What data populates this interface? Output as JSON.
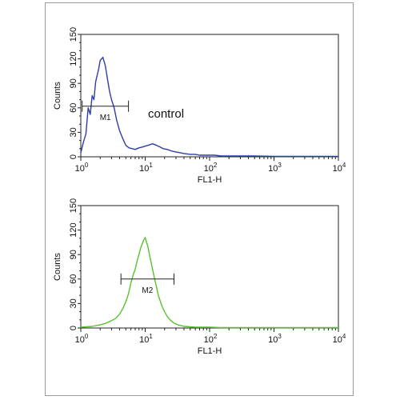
{
  "chart_data": [
    {
      "type": "line",
      "title": "",
      "xlabel": "FL1-H",
      "ylabel": "Counts",
      "xscale": "log",
      "xlim": [
        1,
        10000
      ],
      "ylim": [
        0,
        150
      ],
      "x_ticks": [
        {
          "base": "10",
          "exp": "0"
        },
        {
          "base": "10",
          "exp": "1"
        },
        {
          "base": "10",
          "exp": "2"
        },
        {
          "base": "10",
          "exp": "3"
        },
        {
          "base": "10",
          "exp": "4"
        }
      ],
      "y_ticks": [
        "0",
        "30",
        "60",
        "90",
        "120",
        "150"
      ],
      "annotation": "control",
      "gate": {
        "label": "M1",
        "x_start": 1.05,
        "x_end": 5.5,
        "y": 62
      },
      "series": [
        {
          "color": "#2b3fa8",
          "x": [
            1.0,
            1.1,
            1.2,
            1.3,
            1.4,
            1.5,
            1.6,
            1.7,
            1.8,
            1.9,
            2.0,
            2.2,
            2.4,
            2.6,
            2.8,
            3.0,
            3.3,
            3.6,
            4.0,
            4.5,
            5.0,
            5.6,
            6.3,
            7.0,
            8.0,
            9.0,
            10,
            11,
            12,
            13,
            14,
            15,
            17,
            19,
            22,
            26,
            30,
            35,
            40,
            50,
            60,
            70,
            80,
            100,
            120,
            150,
            200,
            300,
            500,
            1000,
            2000,
            5000,
            10000
          ],
          "y": [
            5,
            18,
            28,
            60,
            52,
            75,
            70,
            92,
            100,
            108,
            118,
            122,
            112,
            95,
            80,
            70,
            60,
            45,
            32,
            22,
            14,
            11,
            10,
            9,
            11,
            12,
            13,
            14,
            15,
            16,
            15,
            14,
            12,
            10,
            9,
            7,
            6,
            5,
            4,
            3,
            3,
            2,
            2,
            2,
            2,
            1,
            1,
            1,
            1,
            0.5,
            0.5,
            0.5,
            0.5
          ]
        }
      ]
    },
    {
      "type": "line",
      "title": "",
      "xlabel": "FL1-H",
      "ylabel": "Counts",
      "xscale": "log",
      "xlim": [
        1,
        10000
      ],
      "ylim": [
        0,
        150
      ],
      "x_ticks": [
        {
          "base": "10",
          "exp": "0"
        },
        {
          "base": "10",
          "exp": "1"
        },
        {
          "base": "10",
          "exp": "2"
        },
        {
          "base": "10",
          "exp": "3"
        },
        {
          "base": "10",
          "exp": "4"
        }
      ],
      "y_ticks": [
        "0",
        "30",
        "60",
        "90",
        "120",
        "150"
      ],
      "gate": {
        "label": "M2",
        "x_start": 4.2,
        "x_end": 28,
        "y": 60
      },
      "series": [
        {
          "color": "#55c22e",
          "x": [
            1.0,
            1.5,
            2.0,
            2.5,
            3.0,
            3.5,
            4.0,
            4.5,
            5.0,
            5.5,
            6.0,
            6.5,
            7.0,
            7.5,
            8.0,
            8.5,
            9.0,
            9.5,
            10,
            10.5,
            11,
            11.5,
            12,
            13,
            14,
            15,
            16,
            18,
            20,
            22,
            25,
            28,
            32,
            36,
            40,
            50,
            60,
            80,
            100,
            150,
            200,
            300,
            500,
            1000,
            2000,
            5000,
            10000
          ],
          "y": [
            1,
            2,
            4,
            6,
            9,
            12,
            17,
            24,
            32,
            42,
            55,
            65,
            72,
            82,
            90,
            98,
            103,
            108,
            111,
            105,
            100,
            92,
            85,
            72,
            60,
            50,
            40,
            28,
            20,
            14,
            9,
            6,
            4,
            3,
            2,
            1.5,
            1,
            1,
            1,
            0.5,
            0.5,
            0.5,
            0.5,
            0.5,
            0.5,
            0.5,
            0.5
          ]
        }
      ]
    }
  ]
}
